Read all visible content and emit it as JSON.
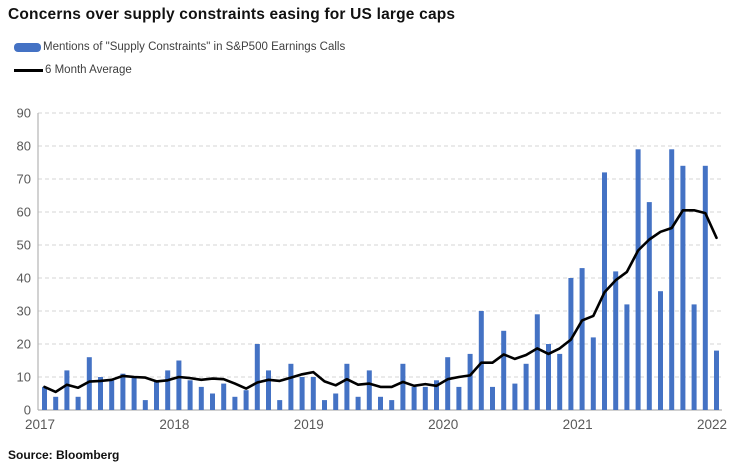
{
  "title": "Concerns over supply constraints easing for US large caps",
  "source": "Source: Bloomberg",
  "legend": {
    "items": [
      {
        "label": "Mentions of \"Supply Constraints\" in S&P500 Earnings Calls",
        "type": "bar",
        "color": "#4472C4"
      },
      {
        "label": "6 Month Average",
        "type": "line",
        "color": "#000000"
      }
    ]
  },
  "chart_data": {
    "type": "bar",
    "title": "Concerns over supply constraints easing for US large caps",
    "frequency": "monthly",
    "start": "2017-01",
    "end": "2022-01",
    "x_tick_labels": [
      "2017",
      "2018",
      "2019",
      "2020",
      "2021",
      "2022"
    ],
    "y_ticks": [
      0,
      10,
      20,
      30,
      40,
      50,
      60,
      70,
      80,
      90
    ],
    "ylim": [
      0,
      90
    ],
    "grid": "horizontal-dashed",
    "legend_position": "top-left",
    "series": [
      {
        "name": "Mentions of \"Supply Constraints\" in S&P500 Earnings Calls",
        "type": "bar",
        "color": "#4472C4",
        "values": [
          7,
          4,
          12,
          4,
          16,
          10,
          9,
          11,
          10,
          3,
          9,
          12,
          15,
          9,
          7,
          5,
          8,
          4,
          6,
          20,
          12,
          3,
          14,
          10,
          10,
          3,
          5,
          14,
          4,
          12,
          4,
          3,
          14,
          7,
          7,
          9,
          16,
          7,
          17,
          30,
          7,
          24,
          8,
          14,
          29,
          20,
          17,
          40,
          43,
          22,
          72,
          42,
          32,
          79,
          63,
          36,
          79,
          74,
          32,
          74,
          18
        ]
      },
      {
        "name": "6 Month Average",
        "type": "line",
        "color": "#000000",
        "derivation": "trailing 6-month average of bar series"
      }
    ],
    "style": {
      "bar_color": "#4472C4",
      "line_color": "#000000",
      "grid_color": "#d6d6d6",
      "axis_color": "#b3b3b3",
      "tick_label_color": "#595959"
    }
  }
}
